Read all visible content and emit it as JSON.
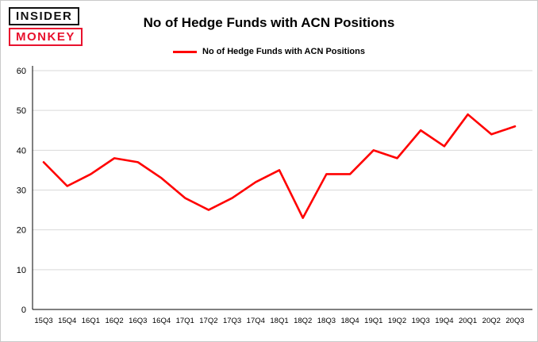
{
  "logo": {
    "line1": "INSIDER",
    "line2": "MONKEY"
  },
  "title": "No of Hedge Funds with ACN Positions",
  "legend": {
    "label": "No of Hedge Funds with ACN Positions",
    "color": "#ff0000"
  },
  "chart_data": {
    "type": "line",
    "title": "No of Hedge Funds with ACN Positions",
    "categories": [
      "15Q3",
      "15Q4",
      "16Q1",
      "16Q2",
      "16Q3",
      "16Q4",
      "17Q1",
      "17Q2",
      "17Q3",
      "17Q4",
      "18Q1",
      "18Q2",
      "18Q3",
      "18Q4",
      "19Q1",
      "19Q2",
      "19Q3",
      "19Q4",
      "20Q1",
      "20Q2",
      "20Q3"
    ],
    "values": [
      37,
      31,
      34,
      38,
      37,
      33,
      28,
      25,
      28,
      32,
      35,
      23,
      34,
      34,
      40,
      38,
      45,
      41,
      49,
      44,
      46
    ],
    "xlabel": "",
    "ylabel": "",
    "ylim": [
      0,
      60
    ],
    "ytick_step": 10,
    "line_color": "#ff0000",
    "grid": "horizontal",
    "legend_position": "top"
  }
}
